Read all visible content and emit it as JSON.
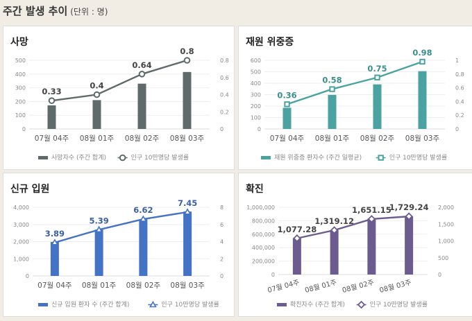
{
  "header": {
    "title": "주간 발생 추이",
    "unit": "(단위 : 명)"
  },
  "chart_data": [
    {
      "type": "bar+line",
      "title": "사망",
      "categories": [
        "07월 04주",
        "08월 01주",
        "08월 02주",
        "08월 03주"
      ],
      "series": [
        {
          "name": "사망자수 (주간 합계)",
          "type": "bar",
          "axis": "left",
          "values": [
            172,
            210,
            330,
            415
          ]
        },
        {
          "name": "인구 10만명당 발생률",
          "type": "line",
          "axis": "right",
          "marker": "circle",
          "values": [
            0.33,
            0.4,
            0.64,
            0.8
          ],
          "labels": [
            "0.33",
            "0.4",
            "0.64",
            "0.8"
          ]
        }
      ],
      "left_ticks": [
        "0",
        "100",
        "200",
        "300",
        "400",
        "500"
      ],
      "ylim": [
        0,
        500
      ],
      "right_ticks": [
        "0",
        "0.2",
        "0.4",
        "0.6",
        "0.8"
      ],
      "y2lim": [
        0,
        0.8
      ],
      "color": "#5f6a6a",
      "line_color": "#5f6a6a",
      "label_color": "#444444",
      "grid": true,
      "legend": "bottom"
    },
    {
      "type": "bar+line",
      "title": "재원 위중증",
      "categories": [
        "07월 04주",
        "08월 01주",
        "08월 02주",
        "08월 03주"
      ],
      "series": [
        {
          "name": "재원 위중증 환자수 (주간 일평균)",
          "type": "bar",
          "axis": "left",
          "values": [
            185,
            298,
            390,
            505
          ]
        },
        {
          "name": "인구 10만명당 발생률",
          "type": "line",
          "axis": "right",
          "marker": "square",
          "values": [
            0.36,
            0.58,
            0.75,
            0.98
          ],
          "labels": [
            "0.36",
            "0.58",
            "0.75",
            "0.98"
          ]
        }
      ],
      "left_ticks": [
        "0",
        "100",
        "200",
        "300",
        "400",
        "500",
        "600"
      ],
      "ylim": [
        0,
        600
      ],
      "right_ticks": [
        "0",
        "0.2",
        "0.4",
        "0.6",
        "0.8",
        "1"
      ],
      "y2lim": [
        0,
        1
      ],
      "color": "#4aa3a0",
      "line_color": "#4aa3a0",
      "label_color": "#3a8f8c",
      "grid": true,
      "legend": "bottom"
    },
    {
      "type": "bar+line",
      "title": "신규 입원",
      "categories": [
        "07월 04주",
        "08월 01주",
        "08월 02주",
        "08월 03주"
      ],
      "series": [
        {
          "name": "신규 입원 환자 수 (주간 합계)",
          "type": "bar",
          "axis": "left",
          "values": [
            1980,
            2700,
            3300,
            3750
          ]
        },
        {
          "name": "인구 10만명당 발생률",
          "type": "line",
          "axis": "right",
          "marker": "triangle",
          "values": [
            3.89,
            5.39,
            6.62,
            7.45
          ],
          "labels": [
            "3.89",
            "5.39",
            "6.62",
            "7.45"
          ]
        }
      ],
      "left_ticks": [
        "0",
        "1,000",
        "2,000",
        "3,000",
        "4,000"
      ],
      "ylim": [
        0,
        4000
      ],
      "right_ticks": [
        "0",
        "2",
        "4",
        "6",
        "8"
      ],
      "y2lim": [
        0,
        8
      ],
      "color": "#4472c4",
      "line_color": "#4472c4",
      "label_color": "#3a5fa8",
      "grid": true,
      "legend": "bottom"
    },
    {
      "type": "bar+line",
      "title": "확진",
      "categories": [
        "07월 04주",
        "08월 01주",
        "08월 02주",
        "08월 03주"
      ],
      "series": [
        {
          "name": "확진자수 (주간 합계)",
          "type": "bar",
          "axis": "left",
          "values": [
            540000,
            660000,
            830000,
            865000
          ]
        },
        {
          "name": "인구 10만명당 발생률",
          "type": "line",
          "axis": "right",
          "marker": "diamond",
          "values": [
            1077.28,
            1319.12,
            1651.15,
            1729.24
          ],
          "labels": [
            "1,077.28",
            "1,319.12",
            "1,651.15",
            "1,729.24"
          ]
        }
      ],
      "left_ticks": [
        "0",
        "200,000",
        "400,000",
        "600,000",
        "800,000",
        "1,000,000"
      ],
      "ylim": [
        0,
        1000000
      ],
      "right_ticks": [
        "0",
        "500",
        "1,000",
        "1,500",
        "2,000"
      ],
      "y2lim": [
        0,
        2000
      ],
      "color": "#6c5b8f",
      "line_color": "#6c5b8f",
      "label_color": "#444444",
      "grid": true,
      "legend": "bottom",
      "rotated_xlabels": true
    }
  ]
}
